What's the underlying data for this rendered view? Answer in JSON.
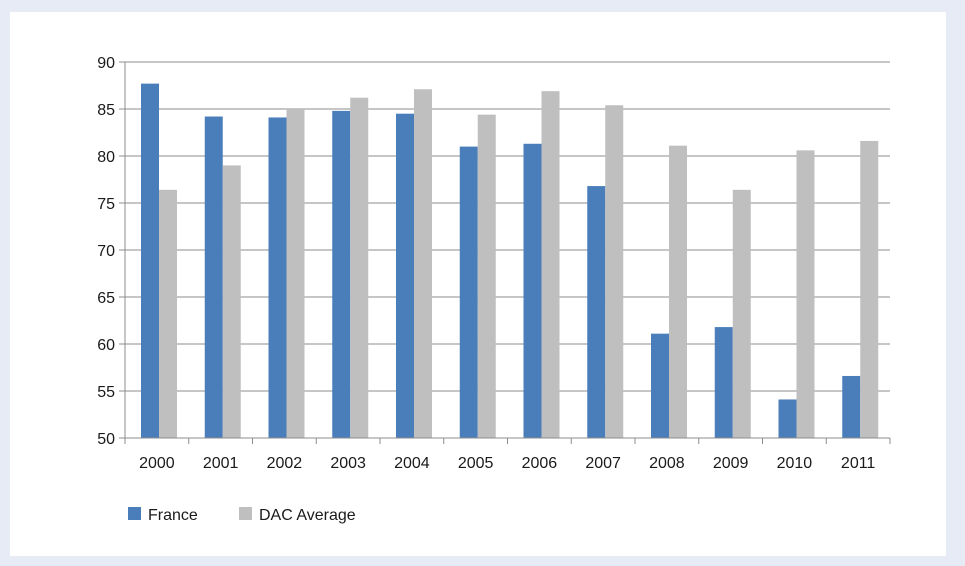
{
  "chart_data": {
    "type": "bar",
    "categories": [
      "2000",
      "2001",
      "2002",
      "2003",
      "2004",
      "2005",
      "2006",
      "2007",
      "2008",
      "2009",
      "2010",
      "2011"
    ],
    "series": [
      {
        "name": "France",
        "color": "#4a7ebb",
        "values": [
          87.7,
          84.2,
          84.1,
          84.8,
          84.5,
          81.0,
          81.3,
          76.8,
          61.1,
          61.8,
          54.1,
          56.6
        ]
      },
      {
        "name": "DAC Average",
        "color": "#bfbfbf",
        "values": [
          76.4,
          79.0,
          85.0,
          86.2,
          87.1,
          84.4,
          86.9,
          85.4,
          81.1,
          76.4,
          80.6,
          81.6
        ]
      }
    ],
    "ylim": [
      50,
      90
    ],
    "yticks": [
      50,
      55,
      60,
      65,
      70,
      75,
      80,
      85,
      90
    ],
    "grid": true,
    "legend": "bottom-left",
    "title": "",
    "xlabel": "",
    "ylabel": ""
  }
}
